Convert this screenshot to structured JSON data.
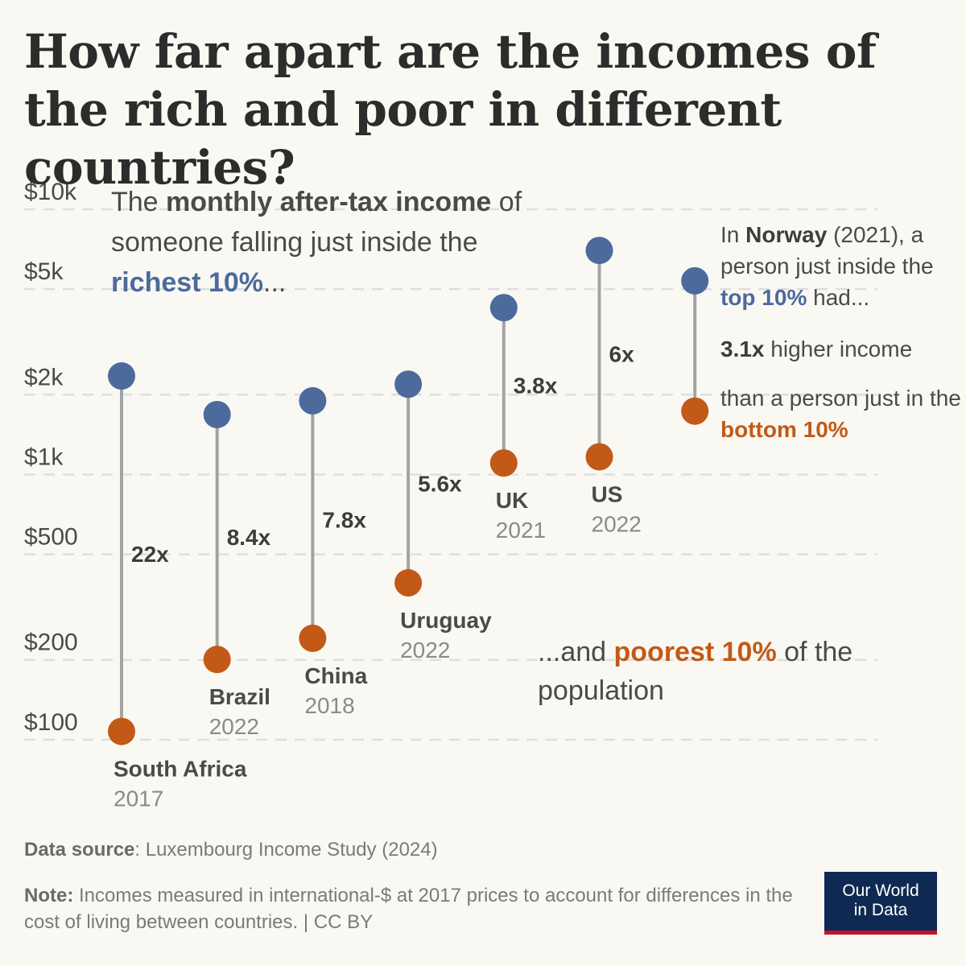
{
  "title": "How far apart are the incomes of the rich and poor in different countries?",
  "intro": {
    "p1": "The ",
    "b1": "monthly after-tax income",
    "p2": " of someone falling just inside the ",
    "b2": "richest 10%",
    "p3": "..."
  },
  "norway_note": {
    "p1": "In ",
    "b1": "Norway",
    "p2": " (2021), a person just inside the ",
    "b2": "top 10%",
    "p3": " had...",
    "ratio": "3.1x",
    "ratio_text": " higher income",
    "p4": "than a person just in the ",
    "b3": "bottom 10%"
  },
  "poorest_note": {
    "p1": "...and ",
    "b1": "poorest 10%",
    "p2": " of the population"
  },
  "source": {
    "label": "Data source",
    "text": ": Luxembourg Income Study (2024)"
  },
  "note": {
    "label": "Note:",
    "text": " Incomes measured in international-$ at 2017 prices to account for differences in the cost of living between countries. | CC BY"
  },
  "logo": {
    "line1": "Our World",
    "line2": "in Data"
  },
  "colors": {
    "top": "#4c6a9c",
    "bottom": "#c25917",
    "connector": "#a3a3a3",
    "grid": "#dedede",
    "axis_text": "#4a4a4a",
    "country": "#4a4a4a",
    "year": "#8a8a8a"
  },
  "chart_data": {
    "type": "dumbbell",
    "yscale": "log",
    "ylim": [
      90,
      10000
    ],
    "ticks": [
      {
        "value": 10000,
        "label": "$10k"
      },
      {
        "value": 5000,
        "label": "$5k"
      },
      {
        "value": 2000,
        "label": "$2k"
      },
      {
        "value": 1000,
        "label": "$1k"
      },
      {
        "value": 500,
        "label": "$500"
      },
      {
        "value": 200,
        "label": "$200"
      },
      {
        "value": 100,
        "label": "$100"
      }
    ],
    "series_names": {
      "top": "richest 10%",
      "bottom": "poorest 10%"
    },
    "countries": [
      {
        "name": "South Africa",
        "year": "2017",
        "top": 2320,
        "bottom": 106,
        "ratio": "22x"
      },
      {
        "name": "Brazil",
        "year": "2022",
        "top": 1660,
        "bottom": 198,
        "ratio": "8.4x"
      },
      {
        "name": "China",
        "year": "2018",
        "top": 1870,
        "bottom": 238,
        "ratio": "7.8x"
      },
      {
        "name": "Uruguay",
        "year": "2022",
        "top": 2160,
        "bottom": 385,
        "ratio": "5.6x"
      },
      {
        "name": "UK",
        "year": "2021",
        "top": 4200,
        "bottom": 1090,
        "ratio": "3.8x"
      },
      {
        "name": "US",
        "year": "2022",
        "top": 6900,
        "bottom": 1150,
        "ratio": "6x"
      },
      {
        "name": "Norway",
        "year": "2021",
        "top": 5300,
        "bottom": 1710,
        "ratio": "3.1x"
      }
    ]
  }
}
